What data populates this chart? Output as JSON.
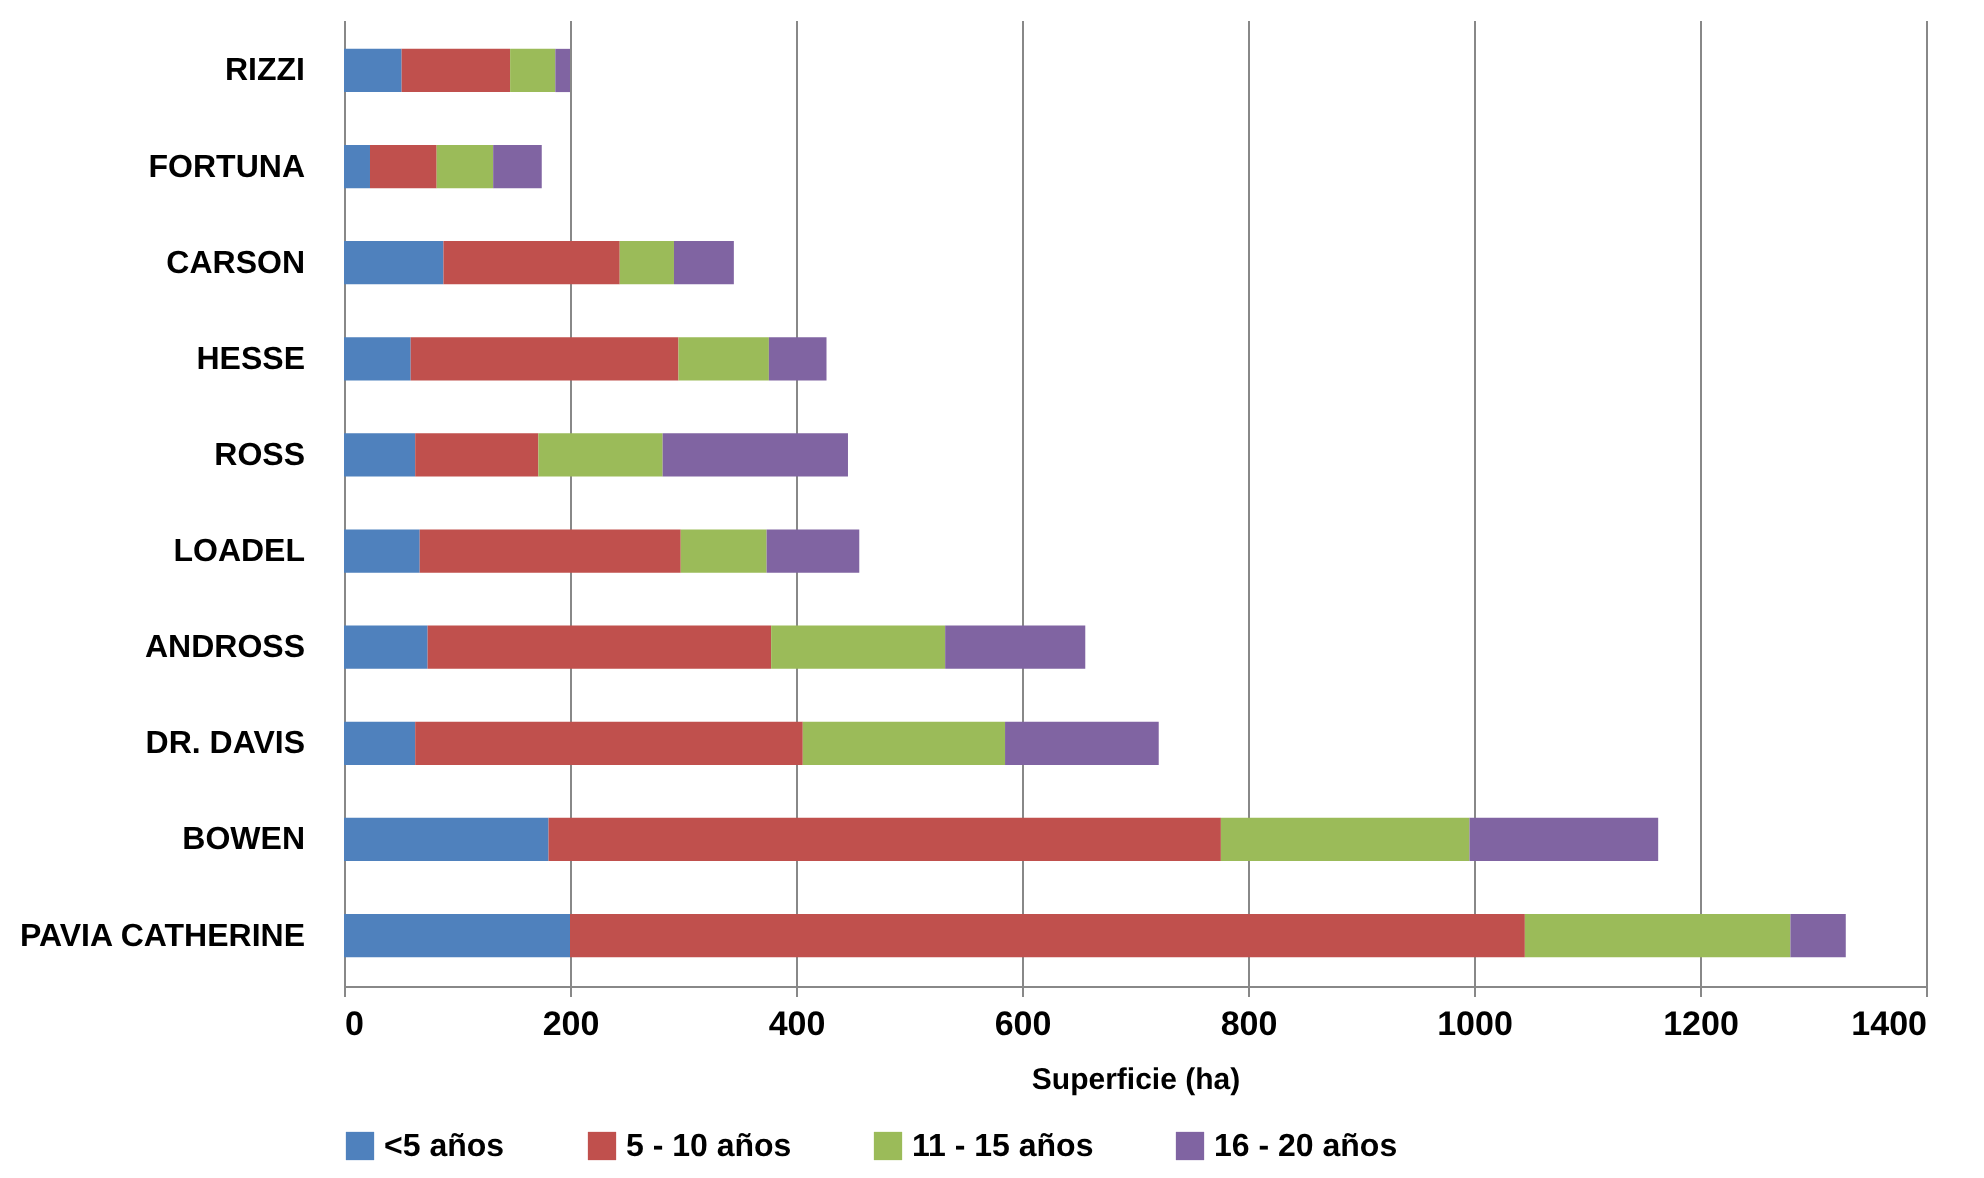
{
  "chart_data": {
    "type": "bar",
    "orientation": "horizontal",
    "stacked": true,
    "xlabel": "Superficie (ha)",
    "categories": [
      "RIZZI",
      "FORTUNA",
      "CARSON",
      "HESSE",
      "ROSS",
      "LOADEL",
      "ANDROSS",
      "DR. DAVIS",
      "BOWEN",
      "PAVIA CATHERINE"
    ],
    "series": [
      {
        "name": "<5 años",
        "color": "#4f81bd",
        "values": [
          51,
          23,
          88,
          59,
          63,
          67,
          74,
          63,
          181,
          200
        ]
      },
      {
        "name": "5 - 10 años",
        "color": "#c0504d",
        "values": [
          96,
          59,
          156,
          237,
          109,
          231,
          304,
          343,
          595,
          845
        ]
      },
      {
        "name": "11 - 15 años",
        "color": "#9bbb59",
        "values": [
          40,
          50,
          48,
          80,
          110,
          76,
          154,
          179,
          220,
          235
        ]
      },
      {
        "name": "16 - 20 años",
        "color": "#8064a2",
        "values": [
          13,
          43,
          53,
          51,
          164,
          82,
          124,
          136,
          167,
          49
        ]
      }
    ],
    "xlim": [
      0,
      1400
    ],
    "xticks": [
      0,
      200,
      400,
      600,
      800,
      1000,
      1200,
      1400
    ],
    "grid": "x",
    "legend": "bottom"
  }
}
